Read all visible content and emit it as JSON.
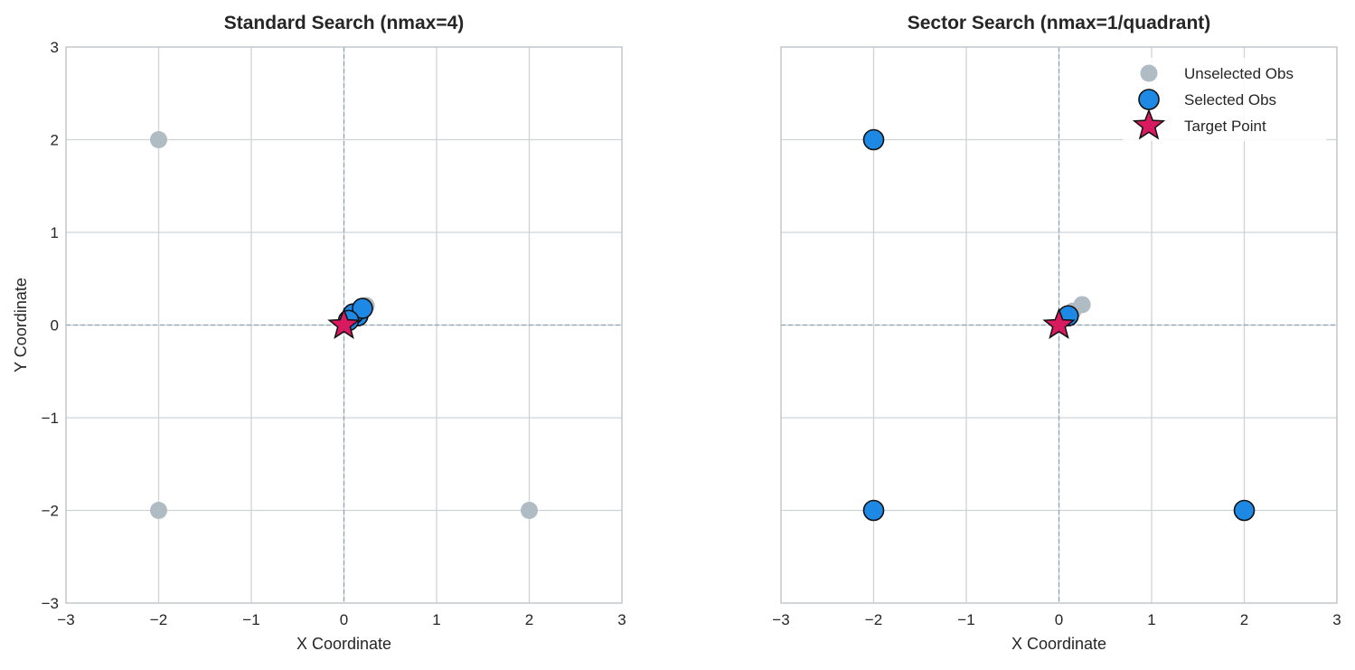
{
  "colors": {
    "unselected": "#b0bcc4",
    "selected": "#1e88e5",
    "target": "#d81b60",
    "marker_edge": "#111111",
    "grid": "#cfd3d6",
    "axes_frame": "#c4c8cc",
    "zero_line": "#8da3b4"
  },
  "icons": {
    "unselected": "circle",
    "selected": "circle",
    "target": "star"
  },
  "chart_data": [
    {
      "type": "scatter",
      "title": "Standard Search (nmax=4)",
      "xlabel": "X Coordinate",
      "ylabel": "Y Coordinate",
      "xlim": [
        -3,
        3
      ],
      "ylim": [
        -3,
        3
      ],
      "xticks": [
        -3,
        -2,
        -1,
        0,
        1,
        2,
        3
      ],
      "yticks": [
        -3,
        -2,
        -1,
        0,
        1,
        2,
        3
      ],
      "xtick_labels": [
        "−3",
        "−2",
        "−1",
        "0",
        "1",
        "2",
        "3"
      ],
      "ytick_labels": [
        "−3",
        "−2",
        "−1",
        "0",
        "1",
        "2",
        "3"
      ],
      "grid": true,
      "zero_lines": true,
      "legend": null,
      "series": [
        {
          "role": "unselected",
          "points": [
            [
              -2,
              2
            ],
            [
              -2,
              -2
            ],
            [
              2,
              -2
            ],
            [
              0.24,
              0.21
            ]
          ]
        },
        {
          "role": "selected",
          "points": [
            [
              0.15,
              0.1
            ],
            [
              0.1,
              0.12
            ],
            [
              0.2,
              0.18
            ],
            [
              0.05,
              0.05
            ]
          ]
        },
        {
          "role": "target",
          "points": [
            [
              0,
              0
            ]
          ]
        }
      ]
    },
    {
      "type": "scatter",
      "title": "Sector Search (nmax=1/quadrant)",
      "xlabel": "X Coordinate",
      "ylabel": "",
      "xlim": [
        -3,
        3
      ],
      "ylim": [
        -3,
        3
      ],
      "xticks": [
        -3,
        -2,
        -1,
        0,
        1,
        2,
        3
      ],
      "yticks": [
        -3,
        -2,
        -1,
        0,
        1,
        2,
        3
      ],
      "xtick_labels": [
        "−3",
        "−2",
        "−1",
        "0",
        "1",
        "2",
        "3"
      ],
      "ytick_labels": [],
      "grid": true,
      "zero_lines": true,
      "legend": {
        "position": "top-right",
        "entries": [
          {
            "role": "unselected",
            "label": "Unselected Obs"
          },
          {
            "role": "selected",
            "label": "Selected Obs"
          },
          {
            "role": "target",
            "label": "Target Point"
          }
        ]
      },
      "series": [
        {
          "role": "unselected",
          "points": [
            [
              0.25,
              0.22
            ],
            [
              0.15,
              0.15
            ]
          ]
        },
        {
          "role": "selected",
          "points": [
            [
              -2,
              2
            ],
            [
              -2,
              -2
            ],
            [
              2,
              -2
            ],
            [
              0.1,
              0.1
            ]
          ]
        },
        {
          "role": "target",
          "points": [
            [
              0,
              0
            ]
          ]
        }
      ]
    }
  ]
}
